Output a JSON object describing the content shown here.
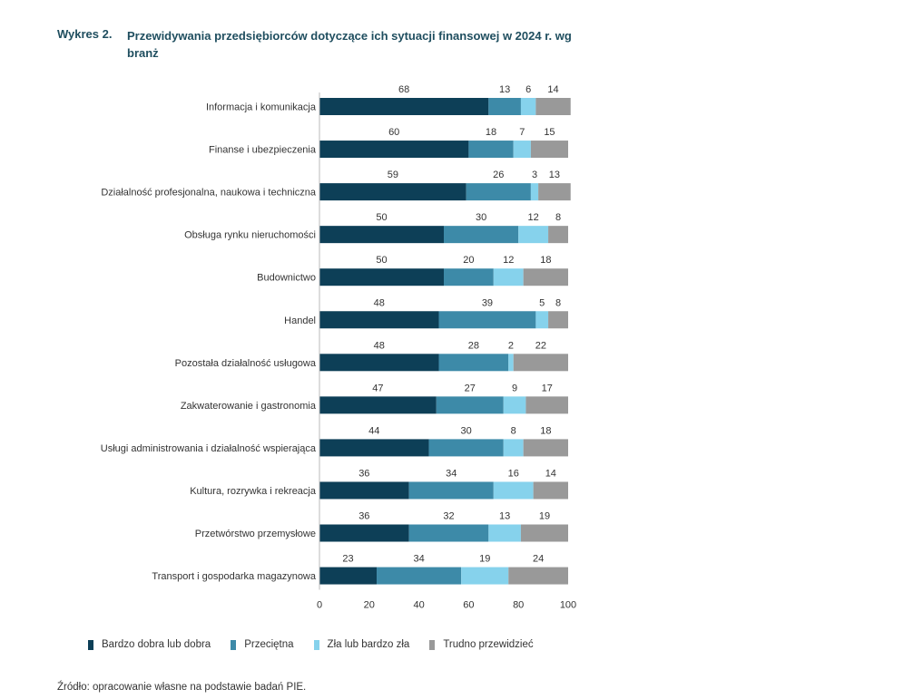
{
  "figure": {
    "label": "Wykres 2.",
    "title": "Przewidywania przedsiębiorców dotyczące ich sytuacji finansowej w 2024 r. wg branż",
    "source": "Źródło: opracowanie własne na podstawie badań PIE."
  },
  "chart_data": {
    "type": "bar",
    "orientation": "horizontal",
    "stacked": true,
    "categories": [
      "Informacja i komunikacja",
      "Finanse i ubezpieczenia",
      "Działalność profesjonalna, naukowa i techniczna",
      "Obsługa rynku nieruchomości",
      "Budownictwo",
      "Handel",
      "Pozostała działalność usługowa",
      "Zakwaterowanie i gastronomia",
      "Usługi administrowania i działalność wspierająca",
      "Kultura, rozrywka i rekreacja",
      "Przetwórstwo przemysłowe",
      "Transport i gospodarka magazynowa"
    ],
    "series": [
      {
        "name": "Bardzo dobra lub dobra",
        "color": "#0d3f57",
        "values": [
          68,
          60,
          59,
          50,
          50,
          48,
          48,
          47,
          44,
          36,
          36,
          23
        ]
      },
      {
        "name": "Przeciętna",
        "color": "#3d8aa8",
        "values": [
          13,
          18,
          26,
          30,
          20,
          39,
          28,
          27,
          30,
          34,
          32,
          34
        ]
      },
      {
        "name": "Zła lub bardzo zła",
        "color": "#86d2ec",
        "values": [
          6,
          7,
          3,
          12,
          12,
          5,
          2,
          9,
          8,
          16,
          13,
          19
        ]
      },
      {
        "name": "Trudno przewidzieć",
        "color": "#999999",
        "values": [
          14,
          15,
          13,
          8,
          18,
          8,
          22,
          17,
          18,
          14,
          19,
          24
        ]
      }
    ],
    "xlim": [
      0,
      100
    ],
    "xticks": [
      0,
      20,
      40,
      60,
      80,
      100
    ],
    "grid": false,
    "legend_position": "bottom"
  }
}
